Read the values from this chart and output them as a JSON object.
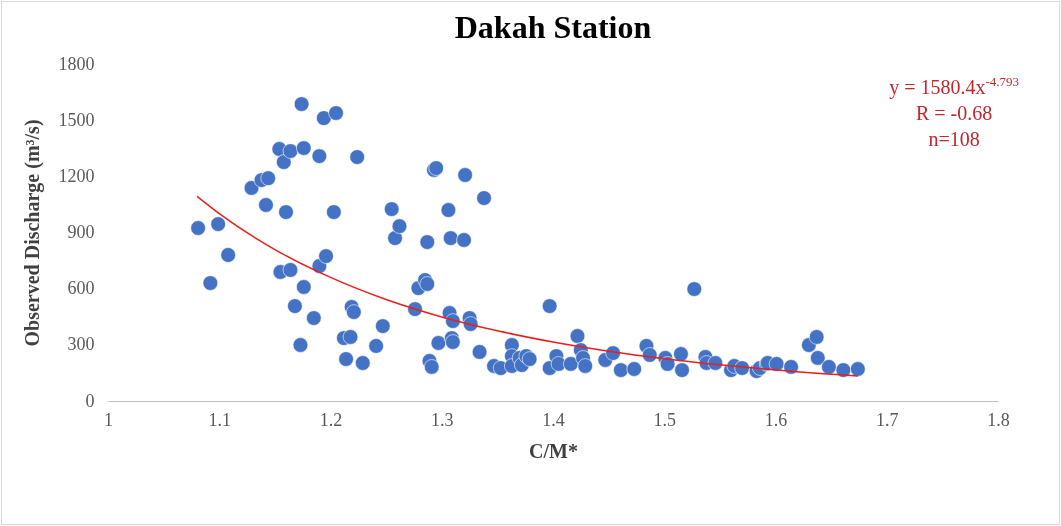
{
  "chart_data": {
    "type": "scatter",
    "title": "Dakah Station",
    "xlabel": "C/M*",
    "ylabel": "Observed Discharge (m³/s)",
    "xlim": [
      1,
      1.8
    ],
    "xticks": [
      1,
      1.1,
      1.2,
      1.3,
      1.4,
      1.5,
      1.6,
      1.7,
      1.8
    ],
    "ylim": [
      0,
      1800
    ],
    "yticks": [
      0,
      300,
      600,
      900,
      1200,
      1500,
      1800
    ],
    "annotations": [
      "y = 1580.4x$^{-4.793}$",
      "R = -0.68",
      "n=108"
    ],
    "series": [
      {
        "marker": "circle",
        "color": "#4472c4",
        "x": [
          1.081,
          1.092,
          1.099,
          1.108,
          1.129,
          1.138,
          1.144,
          1.142,
          1.154,
          1.158,
          1.164,
          1.16,
          1.155,
          1.164,
          1.168,
          1.173,
          1.174,
          1.176,
          1.176,
          1.185,
          1.19,
          1.19,
          1.196,
          1.194,
          1.203,
          1.205,
          1.212,
          1.214,
          1.218,
          1.219,
          1.221,
          1.224,
          1.229,
          1.241,
          1.247,
          1.255,
          1.258,
          1.262,
          1.276,
          1.279,
          1.285,
          1.287,
          1.287,
          1.289,
          1.291,
          1.293,
          1.295,
          1.297,
          1.306,
          1.308,
          1.307,
          1.31,
          1.309,
          1.31,
          1.32,
          1.321,
          1.325,
          1.326,
          1.338,
          1.334,
          1.347,
          1.353,
          1.363,
          1.363,
          1.363,
          1.37,
          1.372,
          1.376,
          1.379,
          1.397,
          1.397,
          1.403,
          1.405,
          1.416,
          1.422,
          1.425,
          1.427,
          1.429,
          1.447,
          1.454,
          1.461,
          1.473,
          1.484,
          1.487,
          1.501,
          1.503,
          1.515,
          1.516,
          1.527,
          1.537,
          1.538,
          1.546,
          1.56,
          1.563,
          1.57,
          1.583,
          1.586,
          1.592,
          1.593,
          1.601,
          1.614,
          1.63,
          1.637,
          1.638,
          1.648,
          1.661,
          1.674
        ],
        "values": [
          924,
          630,
          945,
          780,
          1138,
          1180,
          1190,
          1047,
          1346,
          1276,
          1335,
          1009,
          689,
          700,
          507,
          299,
          1586,
          609,
          1351,
          443,
          721,
          1308,
          774,
          1511,
          1009,
          1538,
          336,
          224,
          342,
          502,
          475,
          1303,
          203,
          294,
          400,
          1025,
          870,
          934,
          491,
          603,
          646,
          625,
          849,
          214,
          182,
          1234,
          1244,
          310,
          1020,
          870,
          470,
          427,
          336,
          315,
          860,
          1207,
          443,
          411,
          1084,
          262,
          187,
          176,
          299,
          240,
          187,
          230,
          192,
          240,
          224,
          507,
          176,
          240,
          198,
          198,
          347,
          272,
          230,
          187,
          219,
          256,
          165,
          171,
          294,
          246,
          230,
          198,
          251,
          165,
          598,
          235,
          203,
          203,
          165,
          187,
          176,
          160,
          176,
          198,
          203,
          198,
          182,
          299,
          342,
          230,
          182,
          165,
          171
        ]
      },
      {
        "type": "line",
        "color": "#ee1c1c",
        "x": [
          1.08,
          1.1,
          1.15,
          1.2,
          1.25,
          1.3,
          1.35,
          1.4,
          1.45,
          1.5,
          1.55,
          1.6,
          1.674
        ],
        "values": [
          1093,
          1001,
          809,
          660,
          542,
          449,
          375,
          315,
          266,
          226,
          193,
          166,
          134
        ]
      }
    ]
  }
}
